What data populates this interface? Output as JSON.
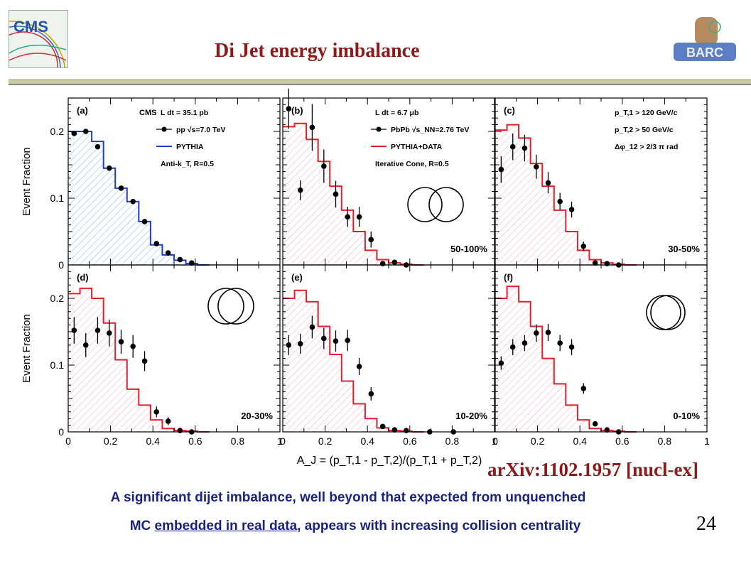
{
  "slide": {
    "title": "Di Jet energy imbalance",
    "logo_left_text": "CMS",
    "logo_right_text": "BARC",
    "reference": "arXiv:1102.1957 [nucl-ex]",
    "caption_line1": "A significant dijet imbalance, well beyond that expected from unquenched",
    "caption_line2_a": "MC ",
    "caption_line2_link": "embedded in real data",
    "caption_line2_b": ", appears with increasing collision centrality",
    "page_number": "24"
  },
  "colors": {
    "title": "#8b1a1a",
    "caption": "#1a237e",
    "pythia_pp": "#1f3fd0",
    "pythia_data": "#e0202a"
  },
  "chart_data": {
    "type": "line",
    "layout": "2x3 grid of histograms",
    "xlabel": "A_J = (p_T,1 - p_T,2)/(p_T,1 + p_T,2)",
    "ylabel": "Event Fraction",
    "xlim": [
      0,
      1
    ],
    "ylim": [
      0,
      0.25
    ],
    "x_ticks": [
      "0",
      "0.2",
      "0.4",
      "0.6",
      "0.8",
      "1"
    ],
    "y_ticks": [
      "0",
      "0.1",
      "0.2"
    ],
    "bin_edges": [
      0,
      0.0556,
      0.1111,
      0.1667,
      0.2222,
      0.2778,
      0.3333,
      0.3889,
      0.4444,
      0.5,
      0.5556,
      0.6111,
      0.6667
    ],
    "panels": [
      {
        "label": "(a)",
        "legend": [
          "CMS",
          "L dt = 35.1 pb",
          "pp √s=7.0 TeV",
          "PYTHIA",
          "Anti-k_T, R=0.5"
        ],
        "series": [
          {
            "name": "pp √s=7.0 TeV",
            "x": [
              0.028,
              0.083,
              0.139,
              0.194,
              0.25,
              0.306,
              0.361,
              0.417,
              0.472,
              0.528,
              0.583
            ],
            "y": [
              0.197,
              0.2,
              0.177,
              0.145,
              0.115,
              0.095,
              0.065,
              0.032,
              0.018,
              0.008,
              0.003
            ],
            "err": [
              0,
              0,
              0,
              0,
              0,
              0,
              0,
              0,
              0,
              0,
              0
            ]
          },
          {
            "name": "PYTHIA",
            "hist": [
              0.2,
              0.2,
              0.185,
              0.145,
              0.115,
              0.095,
              0.065,
              0.03,
              0.015,
              0.007,
              0.002,
              0
            ]
          }
        ]
      },
      {
        "label": "(b)",
        "legend": [
          "L dt = 6.7 μb",
          "PbPb √s_NN=2.76 TeV",
          "PYTHIA+DATA",
          "Iterative Cone, R=0.5"
        ],
        "centrality": "50-100%",
        "series": [
          {
            "name": "PbPb √s_NN=2.76 TeV",
            "x": [
              0.028,
              0.083,
              0.139,
              0.194,
              0.25,
              0.306,
              0.361,
              0.417,
              0.472,
              0.528,
              0.583
            ],
            "y": [
              0.234,
              0.112,
              0.206,
              0.148,
              0.106,
              0.072,
              0.072,
              0.038,
              0.002,
              0.004,
              0
            ],
            "err": [
              0.03,
              0.015,
              0.035,
              0.025,
              0.02,
              0.015,
              0.015,
              0.012,
              0,
              0,
              0
            ]
          },
          {
            "name": "PYTHIA+DATA",
            "hist": [
              0.207,
              0.212,
              0.188,
              0.155,
              0.118,
              0.082,
              0.05,
              0.022,
              0.008,
              0.003,
              0.001,
              0
            ]
          }
        ]
      },
      {
        "label": "(c)",
        "legend": [
          "p_T,1 > 120 GeV/c",
          "p_T,2 > 50 GeV/c",
          "Δφ_12 > 2/3 π rad"
        ],
        "centrality": "30-50%",
        "series": [
          {
            "name": "PbPb",
            "x": [
              0.028,
              0.083,
              0.139,
              0.194,
              0.25,
              0.306,
              0.361,
              0.417,
              0.472,
              0.528,
              0.583
            ],
            "y": [
              0.143,
              0.177,
              0.175,
              0.147,
              0.123,
              0.095,
              0.083,
              0.028,
              0.003,
              0.002,
              0
            ],
            "err": [
              0.02,
              0.02,
              0.02,
              0.018,
              0.016,
              0.013,
              0.012,
              0.007,
              0,
              0,
              0
            ]
          },
          {
            "name": "PYTHIA+DATA",
            "hist": [
              0.202,
              0.21,
              0.19,
              0.152,
              0.118,
              0.082,
              0.05,
              0.022,
              0.008,
              0.003,
              0.001,
              0
            ]
          }
        ]
      },
      {
        "label": "(d)",
        "centrality": "20-30%",
        "series": [
          {
            "name": "PbPb",
            "x": [
              0.028,
              0.083,
              0.139,
              0.194,
              0.25,
              0.306,
              0.361,
              0.417,
              0.472,
              0.528,
              0.583
            ],
            "y": [
              0.152,
              0.13,
              0.152,
              0.148,
              0.135,
              0.128,
              0.106,
              0.03,
              0.016,
              0.002,
              0
            ],
            "err": [
              0.02,
              0.018,
              0.02,
              0.02,
              0.018,
              0.017,
              0.015,
              0.008,
              0.006,
              0,
              0
            ]
          },
          {
            "name": "PYTHIA+DATA",
            "hist": [
              0.207,
              0.215,
              0.2,
              0.163,
              0.108,
              0.064,
              0.04,
              0.018,
              0.005,
              0.002,
              0.001,
              0
            ]
          }
        ]
      },
      {
        "label": "(e)",
        "centrality": "10-20%",
        "series": [
          {
            "name": "PbPb",
            "x": [
              0.028,
              0.083,
              0.139,
              0.194,
              0.25,
              0.306,
              0.361,
              0.417,
              0.472,
              0.528,
              0.583,
              0.694,
              0.806
            ],
            "y": [
              0.13,
              0.132,
              0.157,
              0.14,
              0.136,
              0.137,
              0.098,
              0.057,
              0.008,
              0.003,
              0.002,
              0,
              0
            ],
            "err": [
              0.015,
              0.015,
              0.017,
              0.016,
              0.016,
              0.016,
              0.013,
              0.01,
              0,
              0,
              0,
              0,
              0
            ]
          },
          {
            "name": "PYTHIA+DATA",
            "hist": [
              0.2,
              0.212,
              0.195,
              0.158,
              0.116,
              0.076,
              0.042,
              0.02,
              0.006,
              0.002,
              0.001,
              0
            ]
          }
        ]
      },
      {
        "label": "(f)",
        "centrality": "0-10%",
        "series": [
          {
            "name": "PbPb",
            "x": [
              0.028,
              0.083,
              0.139,
              0.194,
              0.25,
              0.306,
              0.361,
              0.417,
              0.472,
              0.528,
              0.583
            ],
            "y": [
              0.103,
              0.127,
              0.133,
              0.148,
              0.149,
              0.133,
              0.127,
              0.065,
              0.012,
              0.003,
              0
            ],
            "err": [
              0.01,
              0.012,
              0.012,
              0.013,
              0.013,
              0.012,
              0.012,
              0.008,
              0,
              0,
              0
            ]
          },
          {
            "name": "PYTHIA+DATA",
            "hist": [
              0.2,
              0.218,
              0.195,
              0.158,
              0.11,
              0.072,
              0.04,
              0.018,
              0.005,
              0.002,
              0.001,
              0
            ]
          }
        ]
      }
    ]
  }
}
